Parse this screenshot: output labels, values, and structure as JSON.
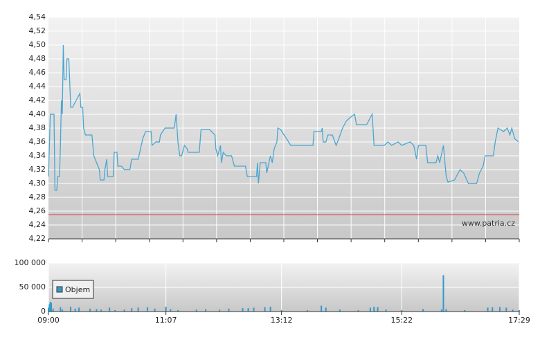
{
  "chart_data": [
    {
      "type": "line",
      "xlim": [
        "09:00",
        "17:29"
      ],
      "ylim": [
        4.22,
        4.54
      ],
      "yticks": [
        {
          "value": 4.22,
          "label": "4,22"
        },
        {
          "value": 4.24,
          "label": "4,24"
        },
        {
          "value": 4.26,
          "label": "4,26"
        },
        {
          "value": 4.28,
          "label": "4,28"
        },
        {
          "value": 4.3,
          "label": "4,30"
        },
        {
          "value": 4.32,
          "label": "4,32"
        },
        {
          "value": 4.34,
          "label": "4,34"
        },
        {
          "value": 4.36,
          "label": "4,36"
        },
        {
          "value": 4.38,
          "label": "4,38"
        },
        {
          "value": 4.4,
          "label": "4,40"
        },
        {
          "value": 4.42,
          "label": "4,42"
        },
        {
          "value": 4.44,
          "label": "4,44"
        },
        {
          "value": 4.46,
          "label": "4,46"
        },
        {
          "value": 4.48,
          "label": "4,48"
        },
        {
          "value": 4.5,
          "label": "4,50"
        },
        {
          "value": 4.52,
          "label": "4,52"
        },
        {
          "value": 4.54,
          "label": "4,54"
        }
      ],
      "grid": true,
      "reference_line": {
        "value": 4.255,
        "color": "#d83a3a"
      },
      "watermark": "www.patria.cz",
      "series": [
        {
          "color": "#4aa6d0",
          "x": [
            "09:00",
            "09:02",
            "09:06",
            "09:07",
            "09:09",
            "09:10",
            "09:12",
            "09:13",
            "09:14",
            "09:15",
            "09:16",
            "09:17",
            "09:19",
            "09:20",
            "09:22",
            "09:24",
            "09:26",
            "09:30",
            "09:34",
            "09:35",
            "09:37",
            "09:38",
            "09:40",
            "09:47",
            "09:49",
            "09:52",
            "09:55",
            "09:56",
            "10:00",
            "10:01",
            "10:03",
            "10:04",
            "10:10",
            "10:11",
            "10:14",
            "10:15",
            "10:19",
            "10:22",
            "10:28",
            "10:30",
            "10:37",
            "10:42",
            "10:45",
            "10:51",
            "10:52",
            "10:56",
            "11:00",
            "11:01",
            "11:06",
            "11:16",
            "11:18",
            "11:20",
            "11:22",
            "11:24",
            "11:27",
            "11:30",
            "11:31",
            "11:43",
            "11:45",
            "11:54",
            "12:00",
            "12:01",
            "12:03",
            "12:06",
            "12:07",
            "12:09",
            "12:12",
            "12:18",
            "12:21",
            "12:33",
            "12:35",
            "12:45",
            "12:46",
            "12:47",
            "12:49",
            "12:55",
            "12:56",
            "13:00",
            "13:02",
            "13:04",
            "13:07",
            "13:08",
            "13:11",
            "13:22",
            "13:46",
            "13:47",
            "13:55",
            "13:56",
            "13:57",
            "14:00",
            "14:02",
            "14:07",
            "14:11",
            "14:14",
            "14:18",
            "14:22",
            "14:26",
            "14:31",
            "14:33",
            "14:44",
            "14:50",
            "14:52",
            "15:03",
            "15:07",
            "15:11",
            "15:18",
            "15:22",
            "15:31",
            "15:35",
            "15:38",
            "15:40",
            "15:48",
            "15:50",
            "15:59",
            "16:01",
            "16:03",
            "16:07",
            "16:08",
            "16:10",
            "16:12",
            "16:19",
            "16:25",
            "16:29",
            "16:34",
            "16:43",
            "16:46",
            "16:50",
            "16:52",
            "17:01",
            "17:03",
            "17:06",
            "17:12",
            "17:16",
            "17:19",
            "17:21",
            "17:24",
            "17:28"
          ],
          "values": [
            4.31,
            4.4,
            4.4,
            4.29,
            4.29,
            4.31,
            4.31,
            4.36,
            4.42,
            4.4,
            4.5,
            4.45,
            4.45,
            4.48,
            4.48,
            4.41,
            4.41,
            4.42,
            4.43,
            4.41,
            4.41,
            4.38,
            4.37,
            4.37,
            4.34,
            4.33,
            4.32,
            4.305,
            4.305,
            4.32,
            4.335,
            4.31,
            4.31,
            4.345,
            4.345,
            4.325,
            4.325,
            4.32,
            4.32,
            4.335,
            4.335,
            4.365,
            4.375,
            4.375,
            4.355,
            4.36,
            4.36,
            4.37,
            4.38,
            4.38,
            4.4,
            4.36,
            4.34,
            4.34,
            4.355,
            4.35,
            4.345,
            4.345,
            4.378,
            4.378,
            4.37,
            4.35,
            4.34,
            4.355,
            4.33,
            4.345,
            4.34,
            4.34,
            4.325,
            4.325,
            4.31,
            4.31,
            4.33,
            4.3,
            4.33,
            4.33,
            4.315,
            4.34,
            4.33,
            4.35,
            4.36,
            4.38,
            4.378,
            4.355,
            4.355,
            4.375,
            4.375,
            4.38,
            4.36,
            4.36,
            4.37,
            4.37,
            4.355,
            4.365,
            4.38,
            4.39,
            4.395,
            4.4,
            4.385,
            4.385,
            4.4,
            4.355,
            4.355,
            4.36,
            4.355,
            4.36,
            4.355,
            4.36,
            4.355,
            4.335,
            4.355,
            4.355,
            4.33,
            4.33,
            4.34,
            4.33,
            4.355,
            4.34,
            4.31,
            4.302,
            4.305,
            4.32,
            4.315,
            4.3,
            4.3,
            4.315,
            4.325,
            4.34,
            4.34,
            4.36,
            4.38,
            4.375,
            4.38,
            4.37,
            4.38,
            4.365,
            4.36
          ]
        }
      ]
    },
    {
      "type": "bar",
      "xlim": [
        "09:00",
        "17:29"
      ],
      "xticks": [
        "09:00",
        "11:07",
        "13:12",
        "15:22",
        "17:29"
      ],
      "ylim": [
        0,
        100000
      ],
      "yticks": [
        0,
        {
          "value": 50000,
          "label": "50 000"
        },
        {
          "value": 100000,
          "label": "100 000"
        }
      ],
      "grid": true,
      "series": [
        {
          "name": "Objem",
          "color": "#3399cc",
          "x": [
            "09:00",
            "09:01",
            "09:02",
            "09:03",
            "09:05",
            "09:13",
            "09:15",
            "09:24",
            "09:29",
            "09:33",
            "09:45",
            "09:52",
            "09:57",
            "10:06",
            "10:12",
            "10:22",
            "10:30",
            "10:37",
            "10:47",
            "10:55",
            "11:07",
            "11:12",
            "11:20",
            "11:40",
            "11:50",
            "12:05",
            "12:15",
            "12:30",
            "12:36",
            "12:42",
            "12:54",
            "13:00",
            "13:12",
            "13:40",
            "13:55",
            "14:00",
            "14:15",
            "14:35",
            "14:48",
            "14:52",
            "14:56",
            "15:05",
            "15:22",
            "15:45",
            "16:05",
            "16:07",
            "16:10",
            "16:30",
            "16:55",
            "17:00",
            "17:08",
            "17:15",
            "17:22",
            "17:29"
          ],
          "values": [
            8000,
            15000,
            20000,
            18000,
            6000,
            9000,
            4000,
            10000,
            6000,
            8000,
            6000,
            5000,
            4000,
            8000,
            3000,
            4000,
            7000,
            8000,
            9000,
            6000,
            10000,
            5000,
            3000,
            4000,
            5000,
            4000,
            6000,
            7000,
            7000,
            8000,
            9000,
            10000,
            3000,
            3000,
            12000,
            8000,
            4000,
            3000,
            8000,
            10000,
            9000,
            4000,
            3000,
            5000,
            4000,
            75000,
            5000,
            3000,
            8000,
            9000,
            9000,
            8000,
            4000,
            3000
          ]
        }
      ]
    }
  ]
}
